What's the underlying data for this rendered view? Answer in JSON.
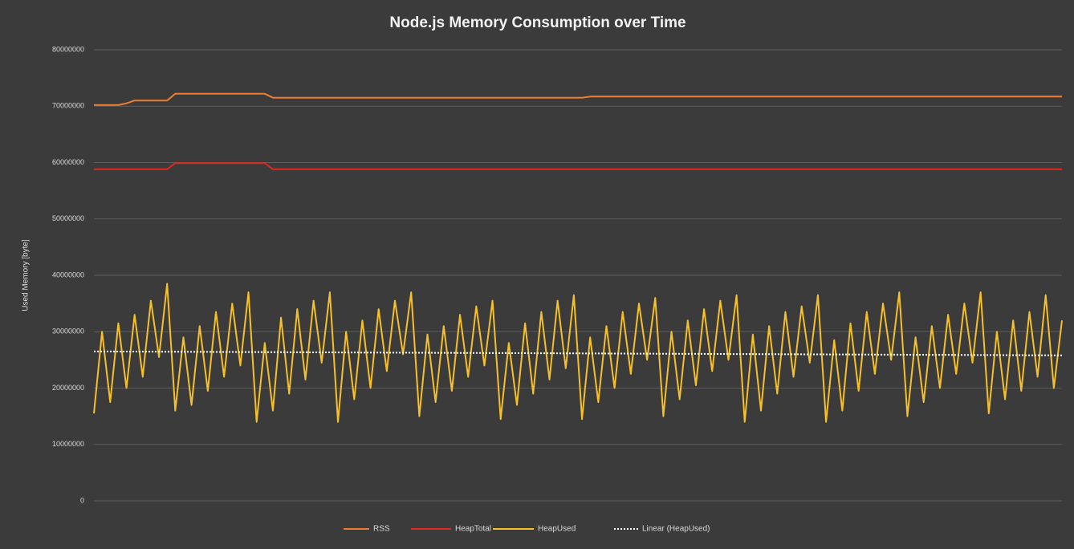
{
  "chart_data": {
    "type": "line",
    "title": "Node.js Memory Consumption over Time",
    "y_label": "Used Memory [byte]",
    "ylim": [
      0,
      80000000
    ],
    "yticks": [
      0,
      10000000,
      20000000,
      30000000,
      40000000,
      50000000,
      60000000,
      70000000,
      80000000
    ],
    "grid": true,
    "legend": "bottom",
    "series": [
      {
        "name": "RSS",
        "color": "#ed7d31",
        "values": [
          70200000,
          70200000,
          70200000,
          70200000,
          70500000,
          71000000,
          71000000,
          71000000,
          71000000,
          71000000,
          72200000,
          72200000,
          72200000,
          72200000,
          72200000,
          72200000,
          72200000,
          72200000,
          72200000,
          72200000,
          72200000,
          72200000,
          71500000,
          71500000,
          71500000,
          71500000,
          71500000,
          71500000,
          71500000,
          71500000,
          71500000,
          71500000,
          71500000,
          71500000,
          71500000,
          71500000,
          71500000,
          71500000,
          71500000,
          71500000,
          71500000,
          71500000,
          71500000,
          71500000,
          71500000,
          71500000,
          71500000,
          71500000,
          71500000,
          71500000,
          71500000,
          71500000,
          71500000,
          71500000,
          71500000,
          71500000,
          71500000,
          71500000,
          71500000,
          71500000,
          71500000,
          71700000,
          71700000,
          71700000,
          71700000,
          71700000,
          71700000,
          71700000,
          71700000,
          71700000,
          71700000,
          71700000,
          71700000,
          71700000,
          71700000,
          71700000,
          71700000,
          71700000,
          71700000,
          71700000,
          71700000,
          71700000,
          71700000,
          71700000,
          71700000,
          71700000,
          71700000,
          71700000,
          71700000,
          71700000,
          71700000,
          71700000,
          71700000,
          71700000,
          71700000,
          71700000,
          71700000,
          71700000,
          71700000,
          71700000,
          71700000,
          71700000,
          71700000,
          71700000,
          71700000,
          71700000,
          71700000,
          71700000,
          71700000,
          71700000,
          71700000,
          71700000,
          71700000,
          71700000,
          71700000,
          71700000,
          71700000,
          71700000,
          71700000,
          71700000
        ]
      },
      {
        "name": "HeapTotal",
        "color": "#e0281e",
        "values": [
          58800000,
          58800000,
          58800000,
          58800000,
          58800000,
          58800000,
          58800000,
          58800000,
          58800000,
          58800000,
          59900000,
          59900000,
          59900000,
          59900000,
          59900000,
          59900000,
          59900000,
          59900000,
          59900000,
          59900000,
          59900000,
          59900000,
          58800000,
          58800000,
          58800000,
          58800000,
          58800000,
          58800000,
          58800000,
          58800000,
          58800000,
          58800000,
          58800000,
          58800000,
          58800000,
          58800000,
          58800000,
          58800000,
          58800000,
          58800000,
          58800000,
          58800000,
          58800000,
          58800000,
          58800000,
          58800000,
          58800000,
          58800000,
          58800000,
          58800000,
          58800000,
          58800000,
          58800000,
          58800000,
          58800000,
          58800000,
          58800000,
          58800000,
          58800000,
          58800000,
          58800000,
          58800000,
          58800000,
          58800000,
          58800000,
          58800000,
          58800000,
          58800000,
          58800000,
          58800000,
          58800000,
          58800000,
          58800000,
          58800000,
          58800000,
          58800000,
          58800000,
          58800000,
          58800000,
          58800000,
          58800000,
          58800000,
          58800000,
          58800000,
          58800000,
          58800000,
          58800000,
          58800000,
          58800000,
          58800000,
          58800000,
          58800000,
          58800000,
          58800000,
          58800000,
          58800000,
          58800000,
          58800000,
          58800000,
          58800000,
          58800000,
          58800000,
          58800000,
          58800000,
          58800000,
          58800000,
          58800000,
          58800000,
          58800000,
          58800000,
          58800000,
          58800000,
          58800000,
          58800000,
          58800000,
          58800000,
          58800000,
          58800000,
          58800000,
          58800000
        ]
      },
      {
        "name": "HeapUsed",
        "color": "#f5c02a",
        "values": [
          15500000,
          30000000,
          17500000,
          31500000,
          20000000,
          33000000,
          22000000,
          35500000,
          25500000,
          38500000,
          16000000,
          29000000,
          17000000,
          31000000,
          19500000,
          33500000,
          22000000,
          35000000,
          24000000,
          37000000,
          14000000,
          28000000,
          16000000,
          32500000,
          19000000,
          34000000,
          21500000,
          35500000,
          24500000,
          37000000,
          14000000,
          30000000,
          18000000,
          32000000,
          20000000,
          34000000,
          23000000,
          35500000,
          26000000,
          37000000,
          15000000,
          29500000,
          17500000,
          31000000,
          19500000,
          33000000,
          22000000,
          34500000,
          24000000,
          35500000,
          14500000,
          28000000,
          17000000,
          31500000,
          19000000,
          33500000,
          21500000,
          35500000,
          23500000,
          36500000,
          14500000,
          29000000,
          17500000,
          31000000,
          20000000,
          33500000,
          22500000,
          35000000,
          25000000,
          36000000,
          15000000,
          30000000,
          18000000,
          32000000,
          20500000,
          34000000,
          23000000,
          35500000,
          25000000,
          36500000,
          14000000,
          29500000,
          16000000,
          31000000,
          19000000,
          33500000,
          22000000,
          34500000,
          24500000,
          36500000,
          14000000,
          28500000,
          16000000,
          31500000,
          19500000,
          33500000,
          22500000,
          35000000,
          25000000,
          37000000,
          15000000,
          29000000,
          17500000,
          31000000,
          20000000,
          33000000,
          22500000,
          35000000,
          24500000,
          37000000,
          15500000,
          30000000,
          18000000,
          32000000,
          19500000,
          33500000,
          22000000,
          36500000,
          20000000,
          32000000
        ]
      }
    ],
    "trendline": {
      "name": "Linear  (HeapUsed)",
      "color": "#ffffff",
      "start": 26500000,
      "end": 25800000
    }
  }
}
